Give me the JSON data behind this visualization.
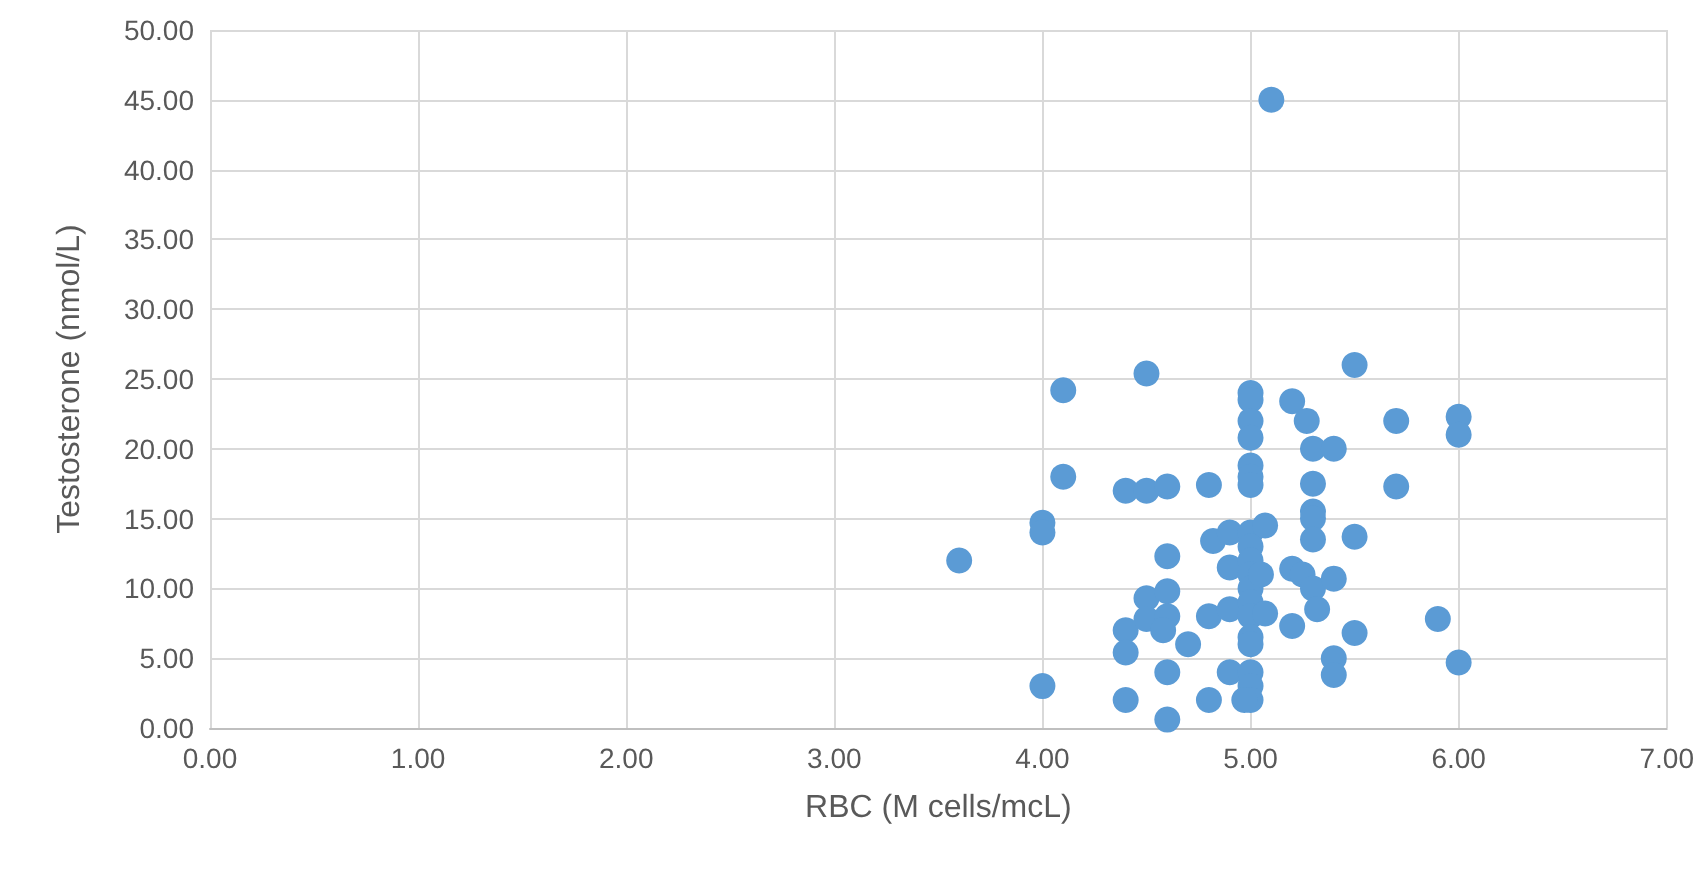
{
  "chart_data": {
    "type": "scatter",
    "xlabel": "RBC (M cells/mcL)",
    "ylabel": "Testosterone (nmol/L)",
    "x": [
      3.6,
      4.0,
      4.0,
      4.0,
      4.1,
      4.1,
      4.4,
      4.5,
      4.6,
      4.8,
      4.5,
      4.4,
      4.4,
      4.4,
      4.5,
      4.5,
      4.6,
      4.6,
      4.6,
      4.58,
      4.6,
      4.6,
      4.7,
      4.8,
      4.8,
      4.9,
      4.9,
      4.82,
      4.9,
      4.9,
      5.0,
      5.0,
      5.0,
      5.0,
      5.0,
      5.0,
      5.0,
      5.0,
      5.0,
      5.0,
      5.0,
      5.0,
      5.0,
      5.0,
      5.0,
      5.0,
      5.0,
      5.0,
      5.0,
      4.97,
      5.07,
      5.05,
      5.07,
      5.1,
      5.2,
      5.2,
      5.2,
      5.25,
      5.27,
      5.3,
      5.3,
      5.3,
      5.3,
      5.3,
      5.3,
      5.32,
      5.4,
      5.4,
      5.4,
      5.4,
      5.5,
      5.5,
      5.5,
      5.7,
      5.7,
      5.9,
      6.0,
      6.0,
      6.0
    ],
    "series": [
      {
        "color": "#5b9bd5",
        "values": [
          12.0,
          3.0,
          14.7,
          14.0,
          24.2,
          18.0,
          17.0,
          17.0,
          17.3,
          17.4,
          25.4,
          7.0,
          5.4,
          2.0,
          9.3,
          7.8,
          9.8,
          12.3,
          8.0,
          7.0,
          4.0,
          0.6,
          6.0,
          2.0,
          8.0,
          8.5,
          4.0,
          13.4,
          14.0,
          11.5,
          24.0,
          23.5,
          22.0,
          20.8,
          18.8,
          18.0,
          17.4,
          14.0,
          13.0,
          12.0,
          11.0,
          10.0,
          9.0,
          8.0,
          6.5,
          6.0,
          4.0,
          3.0,
          2.0,
          2.0,
          14.5,
          11.0,
          8.2,
          45.0,
          23.4,
          11.4,
          7.3,
          11.0,
          22.0,
          20.0,
          17.5,
          15.5,
          15.0,
          13.5,
          10.0,
          8.5,
          20.0,
          10.7,
          5.0,
          3.8,
          26.0,
          13.7,
          6.8,
          22.0,
          17.3,
          7.8,
          22.3,
          21.0,
          4.7
        ]
      }
    ],
    "xlim": [
      0,
      7
    ],
    "xticks": [
      {
        "value": 0,
        "label": "0.00"
      },
      {
        "value": 1,
        "label": "1.00"
      },
      {
        "value": 2,
        "label": "2.00"
      },
      {
        "value": 3,
        "label": "3.00"
      },
      {
        "value": 4,
        "label": "4.00"
      },
      {
        "value": 5,
        "label": "5.00"
      },
      {
        "value": 6,
        "label": "6.00"
      },
      {
        "value": 7,
        "label": "7.00"
      }
    ],
    "ylim": [
      0,
      50
    ],
    "yticks": [
      {
        "value": 0,
        "label": "0.00"
      },
      {
        "value": 5,
        "label": "5.00"
      },
      {
        "value": 10,
        "label": "10.00"
      },
      {
        "value": 15,
        "label": "15.00"
      },
      {
        "value": 20,
        "label": "20.00"
      },
      {
        "value": 25,
        "label": "25.00"
      },
      {
        "value": 30,
        "label": "30.00"
      },
      {
        "value": 35,
        "label": "35.00"
      },
      {
        "value": 40,
        "label": "40.00"
      },
      {
        "value": 45,
        "label": "45.00"
      },
      {
        "value": 50,
        "label": "50.00"
      }
    ],
    "grid": true,
    "marker": "circle"
  }
}
